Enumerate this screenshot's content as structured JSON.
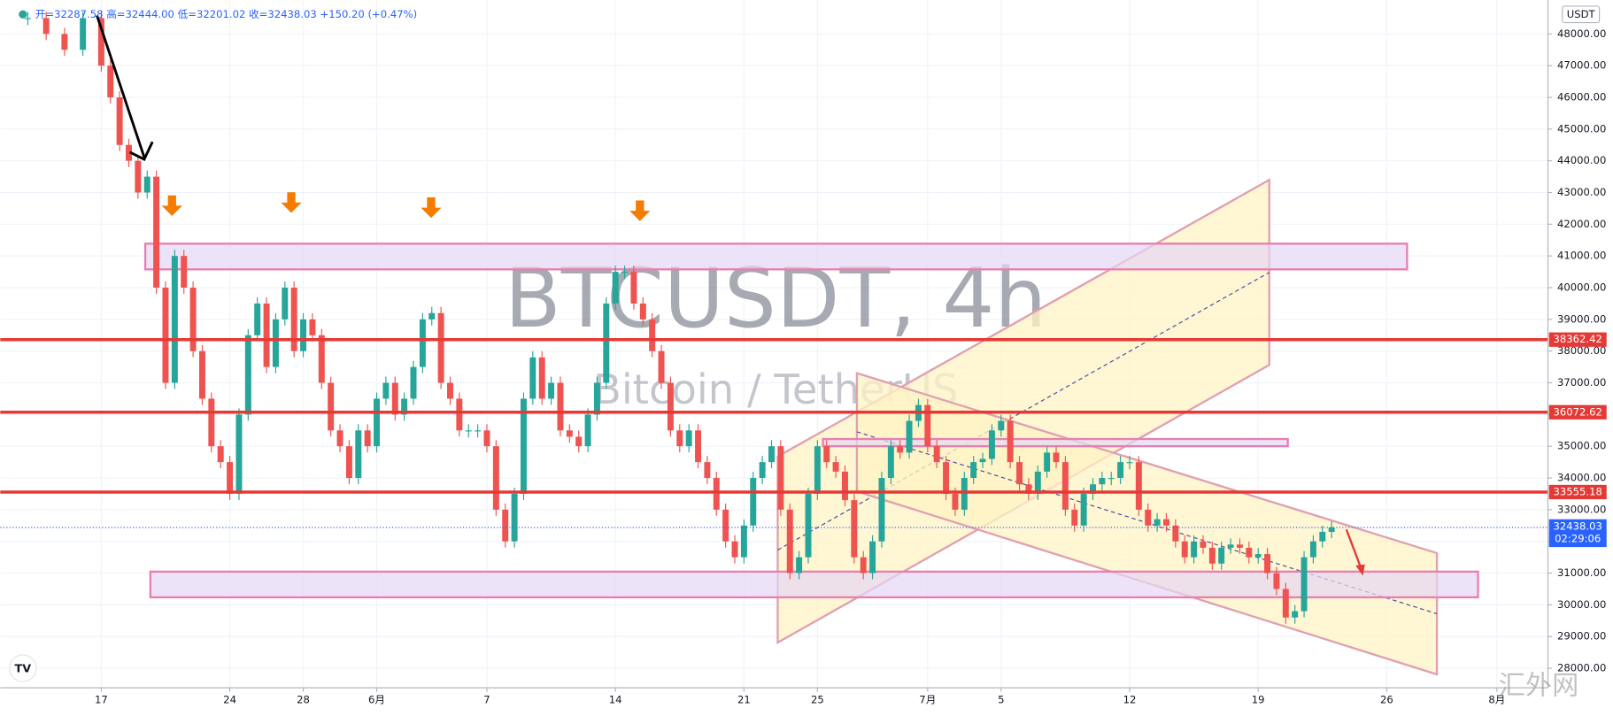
{
  "chart_data": {
    "type": "candlestick",
    "title": "BTCUSDT, 4h",
    "subtitle": "Bitcoin / TetherUS",
    "header": "开=32287.58 高=32444.00 低=32201.02 收=32438.03 +150.20 (+0.47%)",
    "currency": "USDT",
    "countdown": "02:29:06",
    "watermark": "汇外网",
    "up_color": "#26a69a",
    "down_color": "#ef5350",
    "level_color": "#e53935",
    "grid": true,
    "xlim": [
      -5.5,
      78.5
    ],
    "ylim": [
      27384,
      49070
    ],
    "xticks": [
      {
        "value": 0,
        "label": "17"
      },
      {
        "value": 7,
        "label": "24"
      },
      {
        "value": 11,
        "label": "28"
      },
      {
        "value": 15,
        "label": "6月"
      },
      {
        "value": 21,
        "label": "7"
      },
      {
        "value": 28,
        "label": "14"
      },
      {
        "value": 35,
        "label": "21"
      },
      {
        "value": 39,
        "label": "25"
      },
      {
        "value": 45,
        "label": "7月"
      },
      {
        "value": 49,
        "label": "5"
      },
      {
        "value": 56,
        "label": "12"
      },
      {
        "value": 63,
        "label": "19"
      },
      {
        "value": 70,
        "label": "26"
      },
      {
        "value": 76,
        "label": "8月"
      }
    ],
    "yticks": [
      {
        "value": 28000,
        "label": "28000.00"
      },
      {
        "value": 29000,
        "label": "29000.00"
      },
      {
        "value": 30000,
        "label": "30000.00"
      },
      {
        "value": 31000,
        "label": "31000.00"
      },
      {
        "value": 32000,
        "label": "32000.00"
      },
      {
        "value": 33000,
        "label": "33000.00"
      },
      {
        "value": 34000,
        "label": "34000.00"
      },
      {
        "value": 35000,
        "label": "35000.00"
      },
      {
        "value": 36000,
        "label": "36000.00"
      },
      {
        "value": 37000,
        "label": "37000.00"
      },
      {
        "value": 38000,
        "label": "38000.00"
      },
      {
        "value": 39000,
        "label": "39000.00"
      },
      {
        "value": 40000,
        "label": "40000.00"
      },
      {
        "value": 41000,
        "label": "41000.00"
      },
      {
        "value": 42000,
        "label": "42000.00"
      },
      {
        "value": 43000,
        "label": "43000.00"
      },
      {
        "value": 44000,
        "label": "44000.00"
      },
      {
        "value": 45000,
        "label": "45000.00"
      },
      {
        "value": 46000,
        "label": "46000.00"
      },
      {
        "value": 47000,
        "label": "47000.00"
      },
      {
        "value": 48000,
        "label": "48000.00"
      }
    ],
    "levels": [
      38362.42,
      36072.62,
      33555.18
    ],
    "x": [
      -4,
      -3,
      -2,
      -1,
      0,
      0.5,
      1,
      1.5,
      2,
      2.5,
      3,
      3.5,
      4,
      4.5,
      5,
      5.5,
      6,
      6.5,
      7,
      7.5,
      8,
      8.5,
      9,
      9.5,
      10,
      10.5,
      11,
      11.5,
      12,
      12.5,
      13,
      13.5,
      14,
      14.5,
      15,
      15.5,
      16,
      16.5,
      17,
      17.5,
      18,
      18.5,
      19,
      19.5,
      20,
      20.5,
      21,
      21.5,
      22,
      22.5,
      23,
      23.5,
      24,
      24.5,
      25,
      25.5,
      26,
      26.5,
      27,
      27.5,
      28,
      28.5,
      29,
      29.5,
      30,
      30.5,
      31,
      31.5,
      32,
      32.5,
      33,
      33.5,
      34,
      34.5,
      35,
      35.5,
      36,
      36.5,
      37,
      37.5,
      38,
      38.5,
      39,
      39.5,
      40,
      40.5,
      41,
      41.5,
      42,
      42.5,
      43,
      43.5,
      44,
      44.5,
      45,
      45.5,
      46,
      46.5,
      47,
      47.5,
      48,
      48.5,
      49,
      49.5,
      50,
      50.5,
      51,
      51.5,
      52,
      52.5,
      53,
      53.5,
      54,
      54.5,
      55,
      55.5,
      56,
      56.5,
      57,
      57.5,
      58,
      58.5,
      59,
      59.5,
      60,
      60.5,
      61,
      61.5,
      62,
      62.5,
      63,
      63.5,
      64,
      64.5,
      65,
      65.5,
      66,
      66.5,
      67
    ],
    "values": [
      48500,
      48000,
      47500,
      48500,
      47000,
      46000,
      44500,
      44000,
      43000,
      43500,
      40000,
      37000,
      41000,
      40000,
      38000,
      36500,
      35000,
      34500,
      33500,
      36000,
      38500,
      39500,
      37500,
      39000,
      40000,
      38000,
      39000,
      38500,
      37000,
      35500,
      35000,
      34000,
      35500,
      35000,
      36500,
      37000,
      36000,
      36500,
      37500,
      39000,
      39200,
      37000,
      36500,
      35500,
      35500,
      35500,
      35000,
      33000,
      32000,
      33500,
      36500,
      37800,
      36500,
      37000,
      35500,
      35300,
      35000,
      36000,
      37000,
      39500,
      40500,
      40500,
      39500,
      39000,
      38000,
      37000,
      35500,
      35000,
      35500,
      34500,
      34000,
      33000,
      32000,
      31500,
      32500,
      34000,
      34500,
      35000,
      33000,
      31000,
      31500,
      33500,
      35000,
      34500,
      34200,
      33300,
      31500,
      31000,
      32000,
      34000,
      35000,
      34800,
      35800,
      36300,
      35000,
      34500,
      33500,
      33000,
      34000,
      34500,
      34600,
      35500,
      35800,
      34500,
      33800,
      33500,
      34200,
      34800,
      34500,
      33000,
      32500,
      33500,
      33800,
      34000,
      34000,
      34500,
      34500,
      33000,
      32500,
      32700,
      32500,
      32000,
      31500,
      32000,
      31800,
      31300,
      31800,
      31900,
      31800,
      31500,
      31600,
      31000,
      30500,
      29600,
      29800,
      31500,
      32000,
      32300,
      32438.03
    ]
  }
}
